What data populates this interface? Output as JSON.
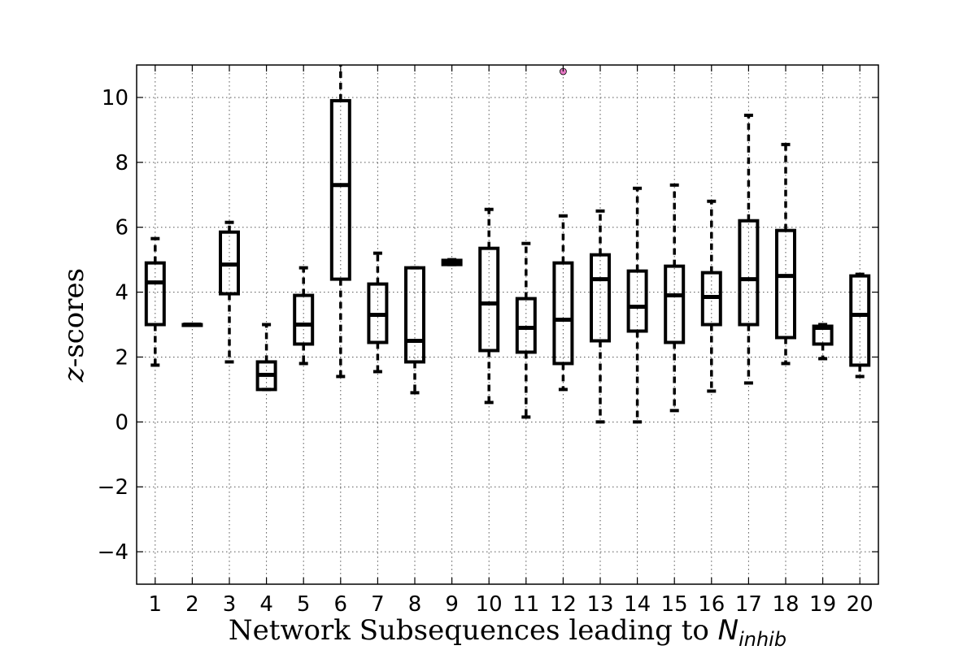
{
  "chart_data": {
    "type": "boxplot",
    "title": "",
    "xlabel_prefix": "Network Subsequences leading to ",
    "xlabel_symbol": "N",
    "xlabel_subscript": "inhib",
    "ylabel_italic": "z",
    "ylabel_rest": "-scores",
    "ylim": [
      -5,
      11
    ],
    "yticks": [
      -4,
      -2,
      0,
      2,
      4,
      6,
      8,
      10
    ],
    "ytick_labels": [
      "−4",
      "−2",
      "0",
      "2",
      "4",
      "6",
      "8",
      "10"
    ],
    "grid": true,
    "categories": [
      "1",
      "2",
      "3",
      "4",
      "5",
      "6",
      "7",
      "8",
      "9",
      "10",
      "11",
      "12",
      "13",
      "14",
      "15",
      "16",
      "17",
      "18",
      "19",
      "20"
    ],
    "boxes": [
      {
        "whislo": 1.75,
        "q1": 3.0,
        "med": 4.3,
        "q3": 4.9,
        "whishi": 5.65
      },
      {
        "whislo": 3.0,
        "q1": 3.0,
        "med": 3.0,
        "q3": 3.0,
        "whishi": 3.0
      },
      {
        "whislo": 1.85,
        "q1": 3.95,
        "med": 4.85,
        "q3": 5.85,
        "whishi": 6.15
      },
      {
        "whislo": 1.0,
        "q1": 1.0,
        "med": 1.45,
        "q3": 1.85,
        "whishi": 3.0
      },
      {
        "whislo": 1.8,
        "q1": 2.4,
        "med": 3.0,
        "q3": 3.9,
        "whishi": 4.75
      },
      {
        "whislo": 1.4,
        "q1": 4.4,
        "med": 7.3,
        "q3": 9.9,
        "whishi": 11.0
      },
      {
        "whislo": 1.55,
        "q1": 2.45,
        "med": 3.3,
        "q3": 4.25,
        "whishi": 5.2
      },
      {
        "whislo": 0.9,
        "q1": 1.85,
        "med": 2.5,
        "q3": 4.75,
        "whishi": 4.75
      },
      {
        "whislo": 4.85,
        "q1": 4.85,
        "med": 4.92,
        "q3": 4.98,
        "whishi": 5.0
      },
      {
        "whislo": 0.6,
        "q1": 2.2,
        "med": 3.65,
        "q3": 5.35,
        "whishi": 6.55
      },
      {
        "whislo": 0.15,
        "q1": 2.15,
        "med": 2.9,
        "q3": 3.8,
        "whishi": 5.5
      },
      {
        "whislo": 1.0,
        "q1": 1.8,
        "med": 3.15,
        "q3": 4.9,
        "whishi": 6.35,
        "fliers": [
          10.8
        ]
      },
      {
        "whislo": 0.0,
        "q1": 2.5,
        "med": 4.4,
        "q3": 5.15,
        "whishi": 6.5
      },
      {
        "whislo": 0.0,
        "q1": 2.8,
        "med": 3.55,
        "q3": 4.65,
        "whishi": 7.2
      },
      {
        "whislo": 0.35,
        "q1": 2.45,
        "med": 3.9,
        "q3": 4.8,
        "whishi": 7.3
      },
      {
        "whislo": 0.95,
        "q1": 3.0,
        "med": 3.85,
        "q3": 4.6,
        "whishi": 6.8
      },
      {
        "whislo": 1.2,
        "q1": 3.0,
        "med": 4.4,
        "q3": 6.2,
        "whishi": 9.45
      },
      {
        "whislo": 1.8,
        "q1": 2.6,
        "med": 4.5,
        "q3": 5.9,
        "whishi": 8.55
      },
      {
        "whislo": 1.95,
        "q1": 2.4,
        "med": 2.9,
        "q3": 2.95,
        "whishi": 3.0
      },
      {
        "whislo": 1.4,
        "q1": 1.75,
        "med": 3.3,
        "q3": 4.5,
        "whishi": 4.55
      }
    ],
    "colors": {
      "box": "#000000",
      "flier": "#e377c2",
      "grid": "#555555"
    }
  }
}
